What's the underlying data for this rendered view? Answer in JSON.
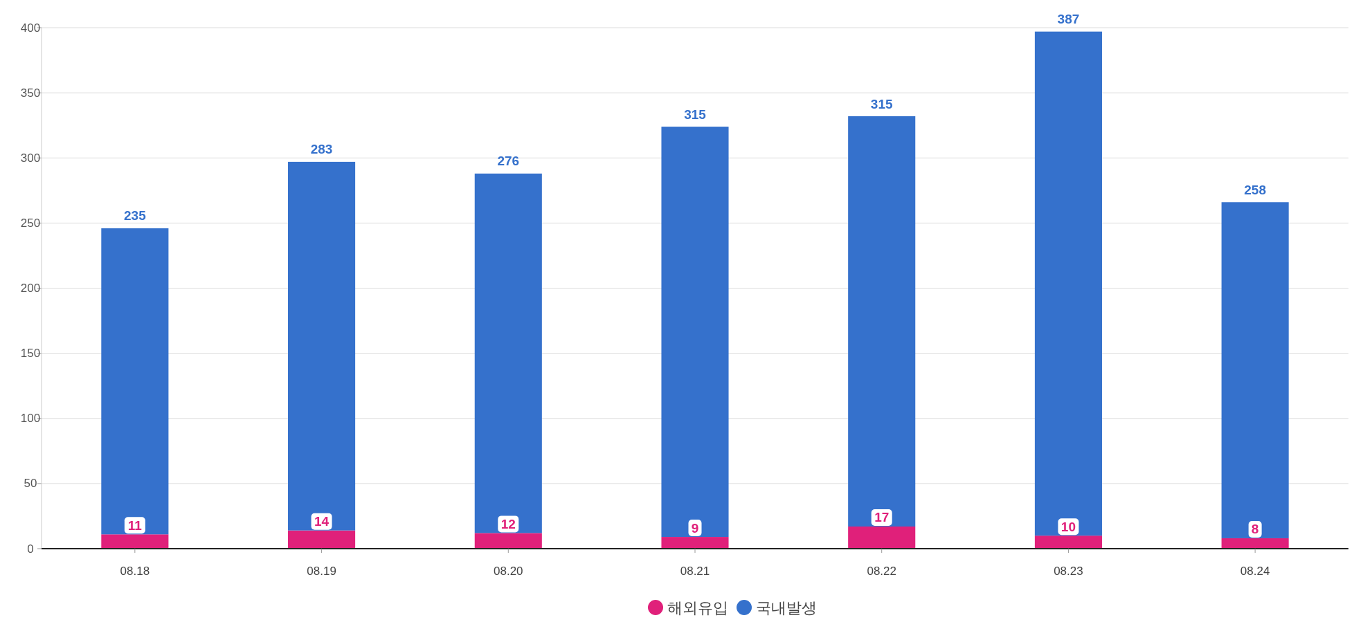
{
  "chart_data": {
    "type": "bar",
    "stacked": true,
    "categories": [
      "08.18",
      "08.19",
      "08.20",
      "08.21",
      "08.22",
      "08.23",
      "08.24"
    ],
    "series": [
      {
        "name": "해외유입",
        "color": "#e0207a",
        "values": [
          11,
          14,
          12,
          9,
          17,
          10,
          8
        ]
      },
      {
        "name": "국내발생",
        "color": "#3571cc",
        "values": [
          235,
          283,
          276,
          315,
          315,
          387,
          258
        ]
      }
    ],
    "ylim": [
      0,
      400
    ],
    "yticks": [
      0,
      50,
      100,
      150,
      200,
      250,
      300,
      350,
      400
    ],
    "grid": "y",
    "legend": "bottom",
    "data_labels": true
  }
}
